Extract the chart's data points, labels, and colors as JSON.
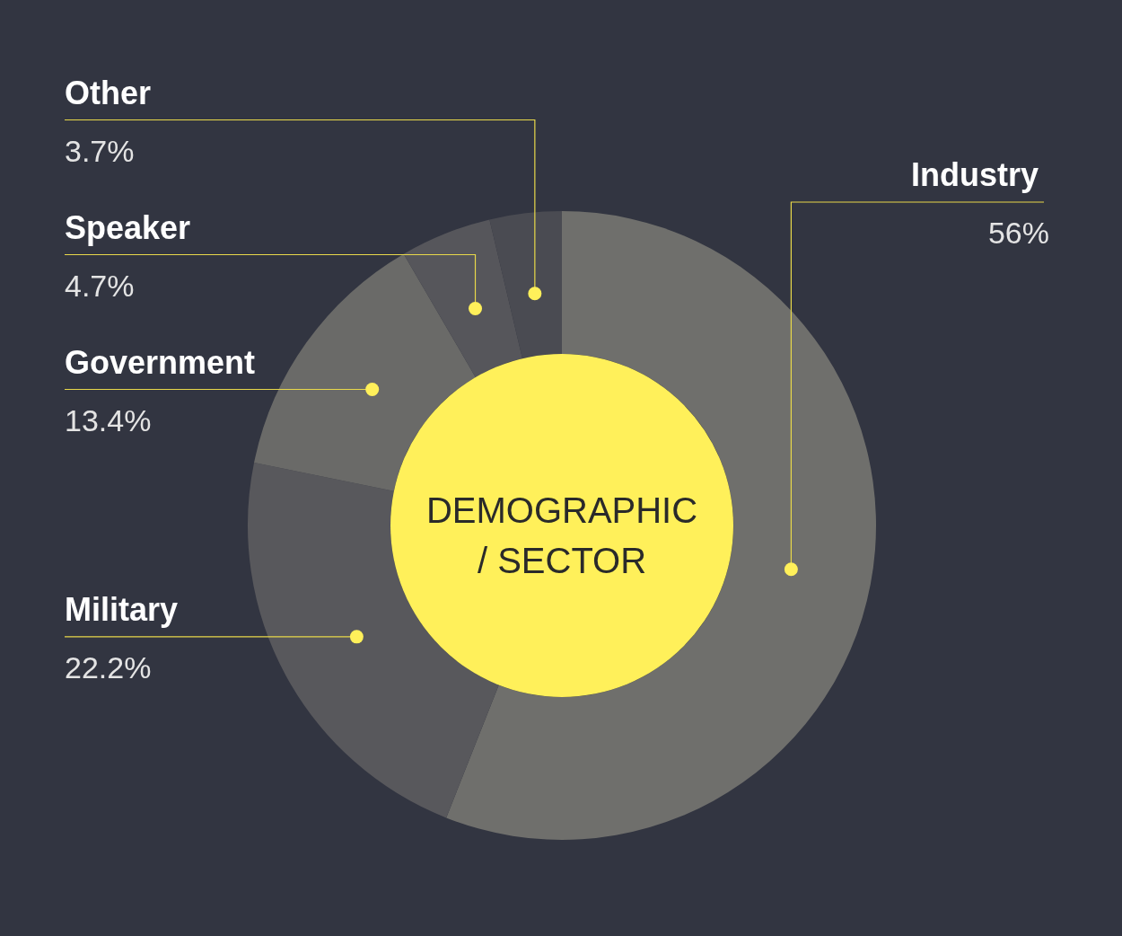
{
  "chart_data": {
    "type": "donut",
    "title": "DEMOGRAPHIC / SECTOR",
    "categories": [
      "Industry",
      "Military",
      "Government",
      "Speaker",
      "Other"
    ],
    "values": [
      56,
      22.2,
      13.4,
      4.7,
      3.7
    ],
    "value_labels": [
      "56%",
      "22.2%",
      "13.4%",
      "4.7%",
      "3.7%"
    ],
    "colors": [
      "#6f6f6c",
      "#58585c",
      "#6a6a68",
      "#56565b",
      "#4a4b52"
    ],
    "legend": false
  }
}
